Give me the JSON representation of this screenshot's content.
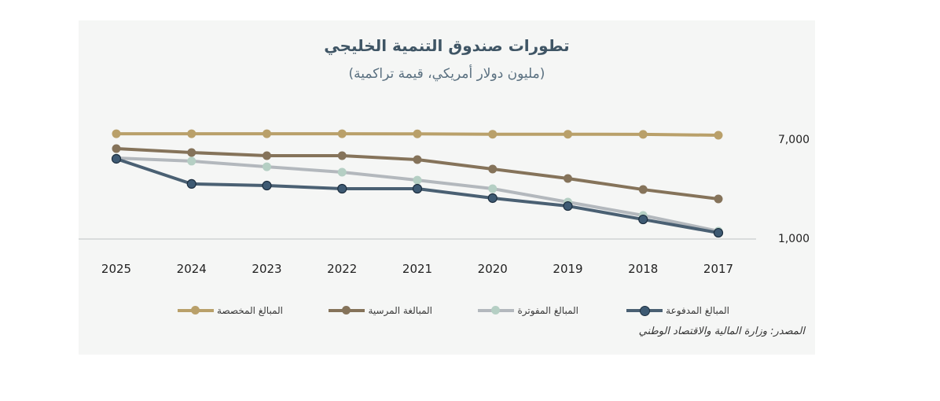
{
  "chart_data": {
    "type": "line",
    "title": "تطورات صندوق التنمية الخليجي",
    "subtitle": "(مليون دولار أمريكي، قيمة تراكمية)",
    "x": [
      "2025",
      "2024",
      "2023",
      "2022",
      "2021",
      "2020",
      "2019",
      "2018",
      "2017"
    ],
    "x_direction": "right-to-left",
    "y_ticks": [
      "7,000",
      "1,000"
    ],
    "ylim": [
      1000,
      7000
    ],
    "y_axis_position": "right",
    "grid": false,
    "legend_placement": "bottom",
    "series": [
      {
        "name": "المبالغ المخصصة",
        "color": "#b9a06a",
        "values": [
          7330,
          7330,
          7330,
          7330,
          7320,
          7300,
          7300,
          7290,
          7240
        ]
      },
      {
        "name": "المبالغة المرسية",
        "color": "#85735a",
        "values": [
          6430,
          6190,
          6000,
          6000,
          5760,
          5190,
          4620,
          3950,
          3380
        ]
      },
      {
        "name": "المبالغ المفوترة",
        "color": "#b3b8bd",
        "marker_color": "#b5cfc4",
        "values": [
          5860,
          5670,
          5330,
          5000,
          4520,
          4000,
          3190,
          2380,
          1430
        ]
      },
      {
        "name": "المبالغ المدفوعة",
        "color": "#4a6073",
        "marker_color": "#3e5a73",
        "values": [
          5810,
          4290,
          4190,
          4000,
          4000,
          3430,
          2950,
          2140,
          1330
        ]
      }
    ],
    "source": "المصدر: وزارة المالية والاقتصاد الوطني"
  }
}
